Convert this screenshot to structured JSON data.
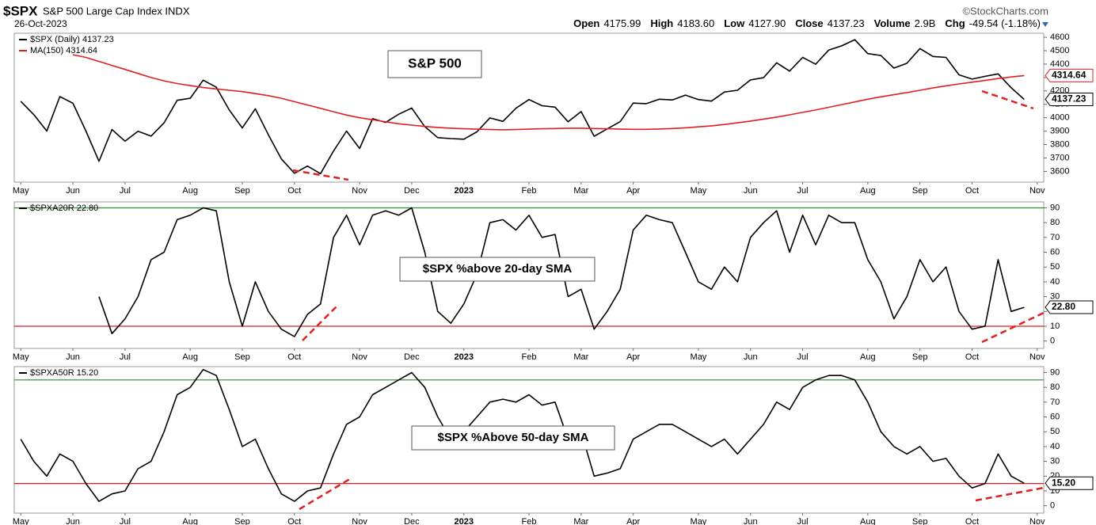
{
  "header": {
    "symbol": "$SPX",
    "name": "S&P 500 Large Cap Index INDX",
    "source": "©StockCharts.com",
    "date": "26-Oct-2023",
    "quote": [
      {
        "label": "Open",
        "value": "4175.99"
      },
      {
        "label": "High",
        "value": "4183.60"
      },
      {
        "label": "Low",
        "value": "4127.90"
      },
      {
        "label": "Close",
        "value": "4137.23"
      },
      {
        "label": "Volume",
        "value": "2.9B"
      },
      {
        "label": "Chg",
        "value": "-49.54 (-1.18%)"
      }
    ]
  },
  "chart_data": [
    {
      "type": "line",
      "annotation": "S&P 500",
      "categories": [
        "May",
        null,
        null,
        null,
        "Jun",
        null,
        null,
        null,
        "Jul",
        null,
        null,
        null,
        null,
        "Aug",
        null,
        null,
        null,
        "Sep",
        null,
        null,
        null,
        "Oct",
        null,
        null,
        null,
        null,
        "Nov",
        null,
        null,
        null,
        "Dec",
        null,
        null,
        null,
        "2023",
        null,
        null,
        null,
        null,
        "Feb",
        null,
        null,
        null,
        "Mar",
        null,
        null,
        null,
        "Apr",
        null,
        null,
        null,
        null,
        "May",
        null,
        null,
        null,
        "Jun",
        null,
        null,
        null,
        "Jul",
        null,
        null,
        null,
        null,
        "Aug",
        null,
        null,
        null,
        "Sep",
        null,
        null,
        null,
        "Oct",
        null,
        null,
        null,
        null,
        "Nov"
      ],
      "series": [
        {
          "name": "$SPX (Daily) 4137.23",
          "color": "#000000",
          "values": [
            4123,
            4023,
            3901,
            4158,
            4108,
            3901,
            3675,
            3912,
            3825,
            3899,
            3863,
            3962,
            4130,
            4145,
            4280,
            4228,
            4058,
            3924,
            4067,
            3873,
            3693,
            3586,
            3640,
            3583,
            3752,
            3901,
            3771,
            3993,
            3965,
            4026,
            4072,
            3934,
            3852,
            3845,
            3840,
            3895,
            3999,
            3973,
            4071,
            4136,
            4090,
            4079,
            3970,
            4046,
            3862,
            3917,
            3971,
            4109,
            4105,
            4138,
            4133,
            4169,
            4136,
            4124,
            4192,
            4205,
            4282,
            4299,
            4410,
            4348,
            4450,
            4399,
            4505,
            4536,
            4582,
            4478,
            4464,
            4370,
            4406,
            4516,
            4457,
            4450,
            4320,
            4288,
            4309,
            4327,
            4224,
            4137.23,
            null
          ],
          "value_labels": [
            null,
            null,
            null,
            null,
            null,
            null,
            null,
            null,
            null,
            null,
            null,
            null,
            null,
            null,
            null,
            null,
            null,
            null,
            null,
            null,
            null,
            null,
            null,
            null,
            null,
            null,
            null,
            null,
            null,
            null,
            null,
            null,
            null,
            null,
            null,
            null,
            null,
            null,
            null,
            null,
            null,
            null,
            null,
            null,
            null,
            null,
            null,
            null,
            null,
            null,
            null,
            null,
            null,
            null,
            null,
            null,
            null,
            null,
            null,
            null,
            null,
            null,
            null,
            null,
            null,
            null,
            null,
            null,
            null,
            null,
            null,
            null,
            null,
            null,
            null,
            null,
            null,
            "4137.23",
            null
          ]
        },
        {
          "name": "MA(150) 4314.64",
          "color": "#e02020",
          "values": [
            null,
            null,
            null,
            null,
            4470,
            4450,
            4420,
            4390,
            4360,
            4330,
            4300,
            4275,
            4255,
            4240,
            4225,
            4215,
            4205,
            4195,
            4180,
            4165,
            4145,
            4120,
            4095,
            4070,
            4045,
            4020,
            4000,
            3985,
            3970,
            3955,
            3945,
            3935,
            3928,
            3922,
            3918,
            3915,
            3912,
            3910,
            3912,
            3915,
            3918,
            3920,
            3922,
            3922,
            3920,
            3918,
            3915,
            3914,
            3914,
            3916,
            3920,
            3925,
            3932,
            3940,
            3950,
            3962,
            3975,
            3990,
            4005,
            4022,
            4040,
            4058,
            4078,
            4098,
            4118,
            4138,
            4156,
            4172,
            4188,
            4205,
            4222,
            4238,
            4252,
            4265,
            4278,
            4292,
            4304,
            4314.64,
            null
          ],
          "value_labels": [
            null,
            null,
            null,
            null,
            null,
            null,
            null,
            null,
            null,
            null,
            null,
            null,
            null,
            null,
            null,
            null,
            null,
            null,
            null,
            null,
            null,
            null,
            null,
            null,
            null,
            null,
            null,
            null,
            null,
            null,
            null,
            null,
            null,
            null,
            null,
            null,
            null,
            null,
            null,
            null,
            null,
            null,
            null,
            null,
            null,
            null,
            null,
            null,
            null,
            null,
            null,
            null,
            null,
            null,
            null,
            null,
            null,
            null,
            null,
            null,
            null,
            null,
            null,
            null,
            null,
            null,
            null,
            null,
            null,
            null,
            null,
            null,
            null,
            null,
            null,
            null,
            null,
            "4314.64",
            null
          ]
        }
      ],
      "ylim": [
        3520,
        4630
      ],
      "yticks": [
        3600,
        3700,
        3800,
        3900,
        4000,
        4100,
        4200,
        4300,
        4400,
        4500,
        4600
      ]
    },
    {
      "type": "line",
      "annotation": "$SPX %above 20-day SMA",
      "categories": [
        "May",
        null,
        null,
        null,
        "Jun",
        null,
        null,
        null,
        "Jul",
        null,
        null,
        null,
        null,
        "Aug",
        null,
        null,
        null,
        "Sep",
        null,
        null,
        null,
        "Oct",
        null,
        null,
        null,
        null,
        "Nov",
        null,
        null,
        null,
        "Dec",
        null,
        null,
        null,
        "2023",
        null,
        null,
        null,
        null,
        "Feb",
        null,
        null,
        null,
        "Mar",
        null,
        null,
        null,
        "Apr",
        null,
        null,
        null,
        null,
        "May",
        null,
        null,
        null,
        "Jun",
        null,
        null,
        null,
        "Jul",
        null,
        null,
        null,
        null,
        "Aug",
        null,
        null,
        null,
        "Sep",
        null,
        null,
        null,
        "Oct",
        null,
        null,
        null,
        null,
        "Nov"
      ],
      "series": [
        {
          "name": "$SPXA20R 22.80",
          "color": "#000000",
          "values": [
            null,
            null,
            null,
            null,
            null,
            null,
            30,
            5,
            15,
            30,
            55,
            60,
            82,
            85,
            90,
            88,
            40,
            10,
            40,
            20,
            8,
            3,
            18,
            25,
            70,
            85,
            65,
            85,
            88,
            85,
            90,
            60,
            20,
            12,
            25,
            45,
            80,
            82,
            75,
            85,
            70,
            72,
            30,
            35,
            8,
            20,
            35,
            75,
            85,
            82,
            80,
            60,
            40,
            35,
            50,
            40,
            70,
            80,
            88,
            60,
            85,
            65,
            85,
            80,
            80,
            55,
            40,
            15,
            30,
            55,
            40,
            50,
            20,
            8,
            10,
            55,
            20,
            22.8,
            null
          ],
          "value_labels": [
            null,
            null,
            null,
            null,
            null,
            null,
            null,
            null,
            null,
            null,
            null,
            null,
            null,
            null,
            null,
            null,
            null,
            null,
            null,
            null,
            null,
            null,
            null,
            null,
            null,
            null,
            null,
            null,
            null,
            null,
            null,
            null,
            null,
            null,
            null,
            null,
            null,
            null,
            null,
            null,
            null,
            null,
            null,
            null,
            null,
            null,
            null,
            null,
            null,
            null,
            null,
            null,
            null,
            null,
            null,
            null,
            null,
            null,
            null,
            null,
            null,
            null,
            null,
            null,
            null,
            null,
            null,
            null,
            null,
            null,
            null,
            null,
            null,
            null,
            null,
            null,
            null,
            "22.80",
            null
          ]
        }
      ],
      "hlines": [
        {
          "value": 90,
          "color": "#2e8b2e"
        },
        {
          "value": 10,
          "color": "#d62020"
        }
      ],
      "ylim": [
        -5,
        94
      ],
      "yticks": [
        0,
        10,
        20,
        30,
        40,
        50,
        60,
        70,
        80,
        90
      ]
    },
    {
      "type": "line",
      "annotation": "$SPX %Above 50-day SMA",
      "categories": [
        "May",
        null,
        null,
        null,
        "Jun",
        null,
        null,
        null,
        "Jul",
        null,
        null,
        null,
        null,
        "Aug",
        null,
        null,
        null,
        "Sep",
        null,
        null,
        null,
        "Oct",
        null,
        null,
        null,
        null,
        "Nov",
        null,
        null,
        null,
        "Dec",
        null,
        null,
        null,
        "2023",
        null,
        null,
        null,
        null,
        "Feb",
        null,
        null,
        null,
        "Mar",
        null,
        null,
        null,
        "Apr",
        null,
        null,
        null,
        null,
        "May",
        null,
        null,
        null,
        "Jun",
        null,
        null,
        null,
        "Jul",
        null,
        null,
        null,
        null,
        "Aug",
        null,
        null,
        null,
        "Sep",
        null,
        null,
        null,
        "Oct",
        null,
        null,
        null,
        null,
        "Nov"
      ],
      "series": [
        {
          "name": "$SPXA50R 15.20",
          "color": "#000000",
          "values": [
            45,
            30,
            20,
            35,
            30,
            15,
            3,
            8,
            10,
            25,
            30,
            50,
            75,
            80,
            92,
            88,
            65,
            40,
            45,
            25,
            8,
            3,
            10,
            12,
            35,
            55,
            60,
            75,
            80,
            85,
            90,
            80,
            60,
            45,
            50,
            60,
            70,
            72,
            70,
            75,
            68,
            70,
            45,
            50,
            20,
            22,
            25,
            45,
            50,
            55,
            55,
            50,
            45,
            40,
            45,
            35,
            45,
            55,
            70,
            65,
            80,
            85,
            88,
            88,
            85,
            70,
            50,
            40,
            35,
            40,
            30,
            32,
            20,
            12,
            15,
            35,
            20,
            15.2,
            null
          ],
          "value_labels": [
            null,
            null,
            null,
            null,
            null,
            null,
            null,
            null,
            null,
            null,
            null,
            null,
            null,
            null,
            null,
            null,
            null,
            null,
            null,
            null,
            null,
            null,
            null,
            null,
            null,
            null,
            null,
            null,
            null,
            null,
            null,
            null,
            null,
            null,
            null,
            null,
            null,
            null,
            null,
            null,
            null,
            null,
            null,
            null,
            null,
            null,
            null,
            null,
            null,
            null,
            null,
            null,
            null,
            null,
            null,
            null,
            null,
            null,
            null,
            null,
            null,
            null,
            null,
            null,
            null,
            null,
            null,
            null,
            null,
            null,
            null,
            null,
            null,
            null,
            null,
            null,
            null,
            "15.20",
            null
          ]
        }
      ],
      "hlines": [
        {
          "value": 85,
          "color": "#2e8b2e"
        },
        {
          "value": 15,
          "color": "#d62020"
        }
      ],
      "ylim": [
        -5,
        94
      ],
      "yticks": [
        0,
        10,
        20,
        30,
        40,
        50,
        60,
        70,
        80,
        90
      ]
    }
  ]
}
